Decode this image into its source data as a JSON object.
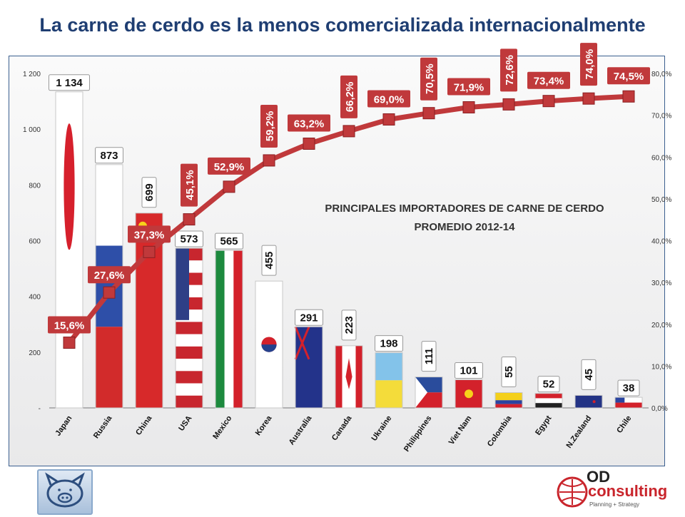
{
  "title": "La carne de cerdo es la menos comercializada internacionalmente",
  "chart_data": {
    "type": "bar",
    "subtitle_lines": [
      "PRINCIPALES IMPORTADORES DE CARNE DE CERDO",
      "PROMEDIO 2012-14"
    ],
    "categories": [
      "Japan",
      "Russia",
      "China",
      "USA",
      "Mexico",
      "Korea",
      "Australia",
      "Canada",
      "Ukraine",
      "Philippines",
      "Viet Nam",
      "Colombia",
      "Egypt",
      "N.Zealand",
      "Chile"
    ],
    "values": [
      1134,
      873,
      699,
      573,
      565,
      455,
      291,
      223,
      198,
      111,
      101,
      55,
      52,
      45,
      38
    ],
    "value_labels": [
      "1 134",
      "873",
      "699",
      "573",
      "565",
      "455",
      "291",
      "223",
      "198",
      "111",
      "101",
      "55",
      "52",
      "45",
      "38"
    ],
    "cumulative_pct": [
      15.6,
      27.6,
      37.3,
      45.1,
      52.9,
      59.2,
      63.2,
      66.2,
      69.0,
      70.5,
      71.9,
      72.6,
      73.4,
      74.0,
      74.5
    ],
    "cumulative_labels": [
      "15,6%",
      "27,6%",
      "37,3%",
      "45,1%",
      "52,9%",
      "59,2%",
      "63,2%",
      "66,2%",
      "69,0%",
      "70,5%",
      "71,9%",
      "72,6%",
      "73,4%",
      "74,0%",
      "74,5%"
    ],
    "y_left_ticks": [
      "-",
      "200",
      "400",
      "600",
      "800",
      "1 000",
      "1 200"
    ],
    "y_left_range": [
      0,
      1200
    ],
    "y_right_ticks": [
      "0,0%",
      "10,0%",
      "20,0%",
      "30,0%",
      "40,0%",
      "50,0%",
      "60,0%",
      "70,0%",
      "80,0%"
    ],
    "y_right_range": [
      0,
      80
    ],
    "grid": false,
    "bar_fill_style": "national flags",
    "line_color": "#c0393b",
    "marker_color": "#c0393b"
  },
  "logos": {
    "left": "pig-icon",
    "right_name": "consulting",
    "right_prefix": "OD",
    "right_tagline": "Planning + Strategy"
  }
}
